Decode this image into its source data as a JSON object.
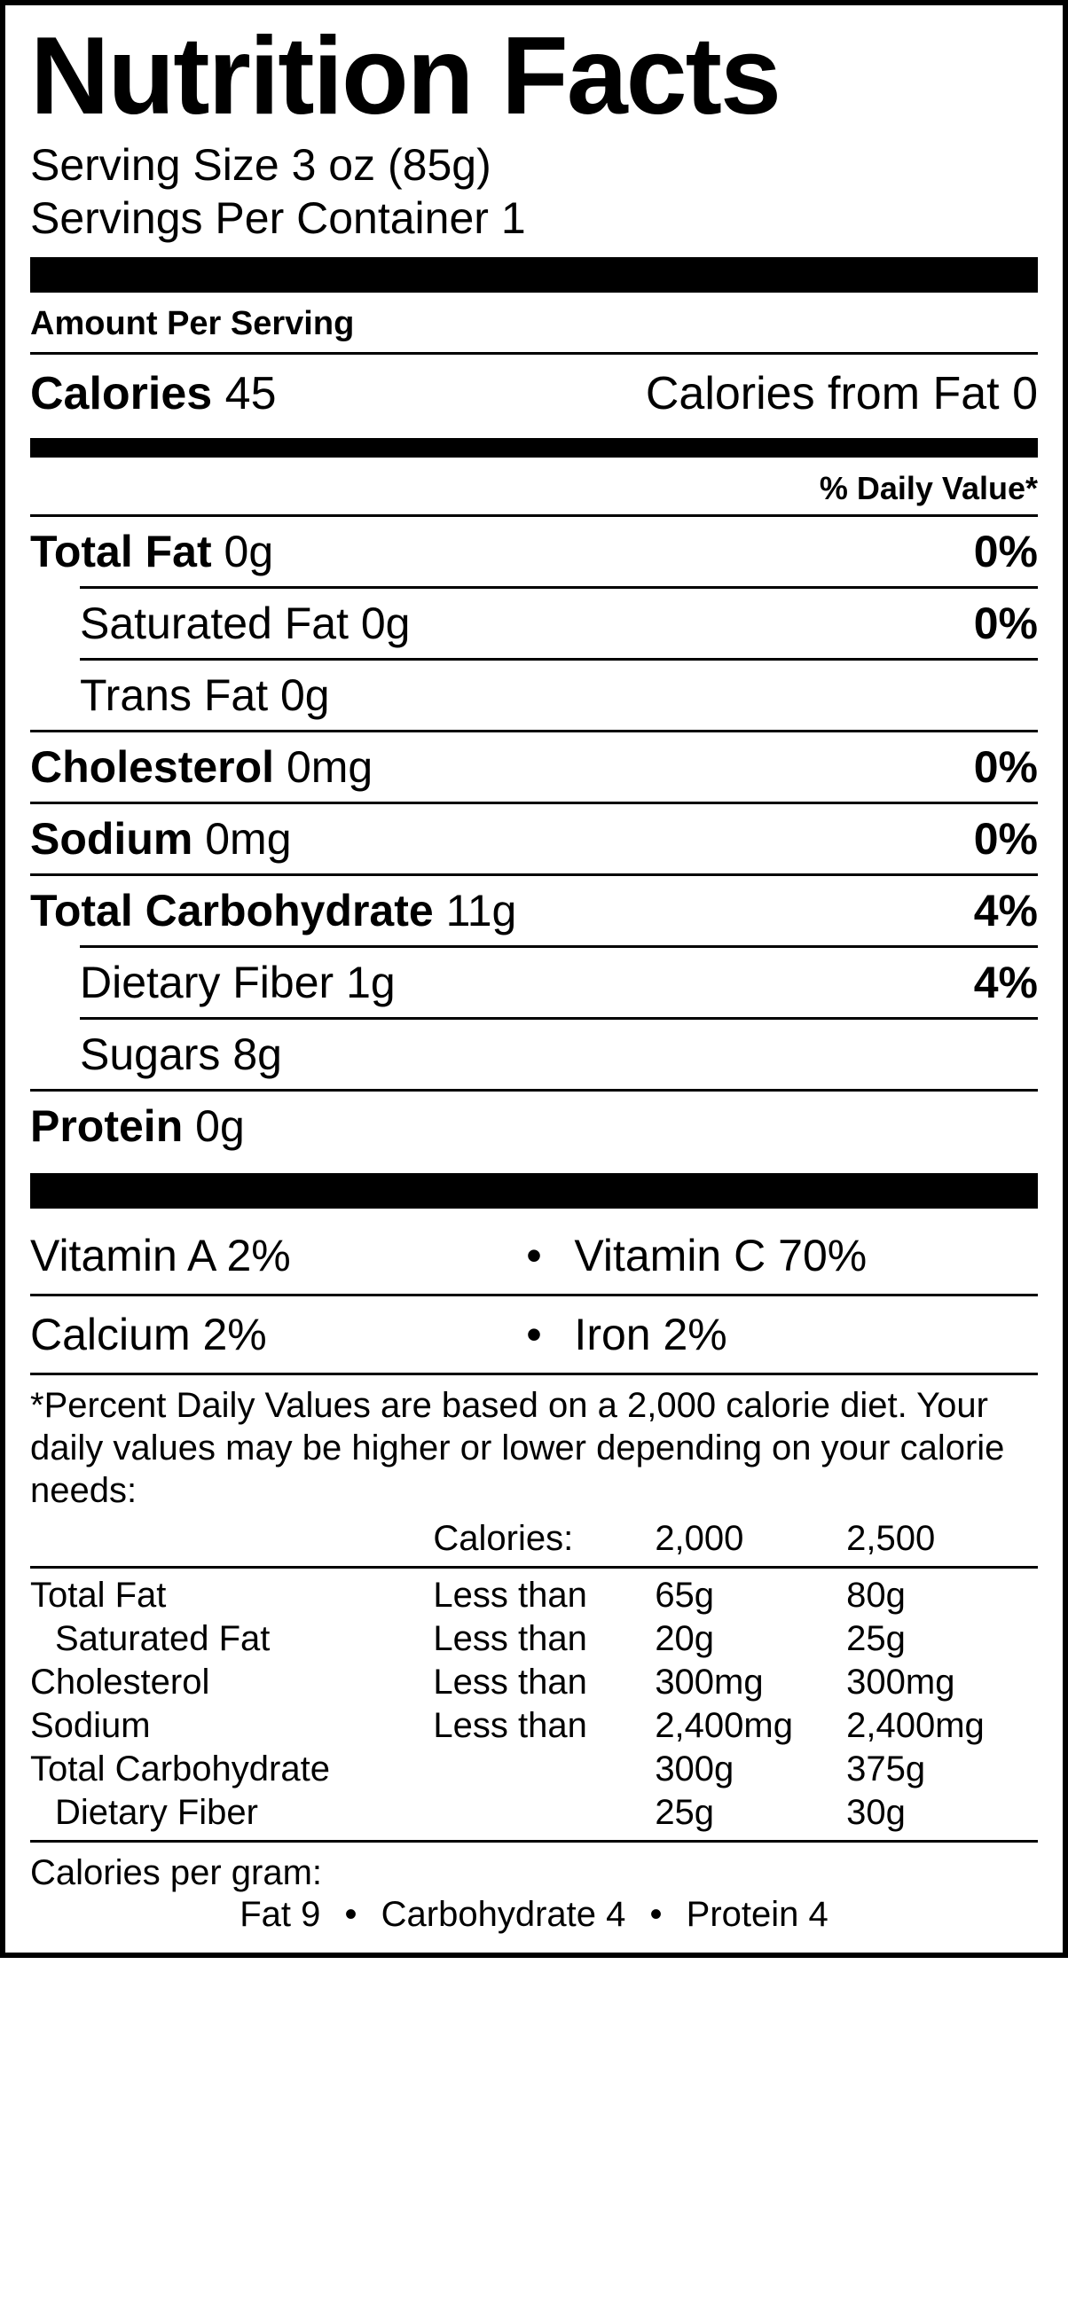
{
  "title": "Nutrition Facts",
  "serving_size_label": "Serving Size",
  "serving_size_value": "3 oz (85g)",
  "servings_per_label": "Servings Per Container",
  "servings_per_value": "1",
  "amount_per_serving": "Amount Per Serving",
  "calories_label": "Calories",
  "calories_value": "45",
  "calories_from_fat_label": "Calories from Fat",
  "calories_from_fat_value": "0",
  "daily_value_header": "% Daily Value*",
  "nutrients": {
    "total_fat": {
      "label": "Total Fat",
      "amount": "0g",
      "dv": "0%"
    },
    "sat_fat": {
      "label": "Saturated Fat",
      "amount": "0g",
      "dv": "0%"
    },
    "trans_fat": {
      "label": "Trans Fat",
      "amount": "0g",
      "dv": ""
    },
    "cholesterol": {
      "label": "Cholesterol",
      "amount": "0mg",
      "dv": "0%"
    },
    "sodium": {
      "label": "Sodium",
      "amount": "0mg",
      "dv": "0%"
    },
    "total_carb": {
      "label": "Total Carbohydrate",
      "amount": "11g",
      "dv": "4%"
    },
    "fiber": {
      "label": "Dietary Fiber",
      "amount": "1g",
      "dv": "4%"
    },
    "sugars": {
      "label": "Sugars",
      "amount": "8g",
      "dv": ""
    },
    "protein": {
      "label": "Protein",
      "amount": "0g",
      "dv": ""
    }
  },
  "vitamins": {
    "vit_a": {
      "label": "Vitamin A",
      "value": "2%"
    },
    "vit_c": {
      "label": "Vitamin C",
      "value": "70%"
    },
    "calcium": {
      "label": "Calcium",
      "value": "2%"
    },
    "iron": {
      "label": "Iron",
      "value": "2%"
    }
  },
  "footnote": "*Percent Daily Values are based on a 2,000 calorie diet. Your daily values may be higher or lower depending on your calorie needs:",
  "guide": {
    "header": {
      "c2": "Calories:",
      "c3": "2,000",
      "c4": "2,500"
    },
    "rows": [
      {
        "name": "Total Fat",
        "qual": "Less than",
        "v2000": "65g",
        "v2500": "80g",
        "indent": false
      },
      {
        "name": "Saturated Fat",
        "qual": "Less than",
        "v2000": "20g",
        "v2500": "25g",
        "indent": true
      },
      {
        "name": "Cholesterol",
        "qual": "Less than",
        "v2000": "300mg",
        "v2500": "300mg",
        "indent": false
      },
      {
        "name": "Sodium",
        "qual": "Less than",
        "v2000": "2,400mg",
        "v2500": "2,400mg",
        "indent": false
      },
      {
        "name": "Total Carbohydrate",
        "qual": "",
        "v2000": "300g",
        "v2500": "375g",
        "indent": false
      },
      {
        "name": "Dietary Fiber",
        "qual": "",
        "v2000": "25g",
        "v2500": "30g",
        "indent": true
      }
    ]
  },
  "cal_per_gram_title": "Calories per gram:",
  "cal_per_gram": {
    "fat": "Fat 9",
    "carb": "Carbohydrate 4",
    "protein": "Protein 4"
  },
  "colors": {
    "fg": "#000000",
    "bg": "#ffffff"
  }
}
